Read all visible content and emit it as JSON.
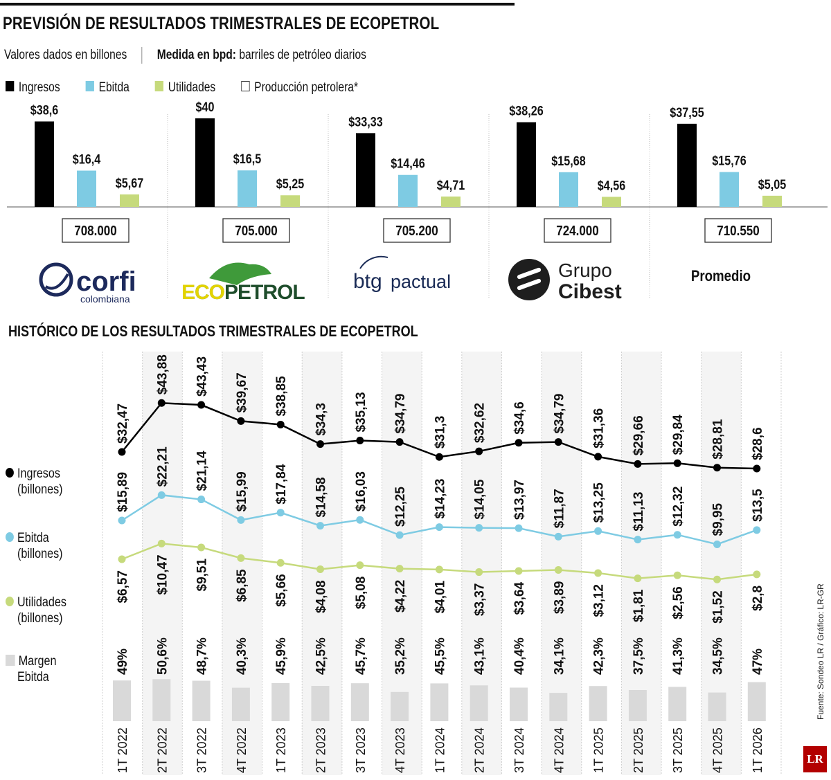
{
  "header": {
    "title": "PREVISIÓN DE RESULTADOS TRIMESTRALES DE ECOPETROL",
    "subtitle_left": "Valores dados en billones",
    "subtitle_right_bold": "Medida en bpd:",
    "subtitle_right_text": "barriles de petróleo diarios"
  },
  "legend_top": [
    {
      "label": "Ingresos",
      "color": "#000000"
    },
    {
      "label": "Ebitda",
      "color": "#7ecbe3"
    },
    {
      "label": "Utilidades",
      "color": "#c6da7c"
    },
    {
      "label": "Producción petrolera*",
      "color": "#ffffff"
    }
  ],
  "history_title": "HISTÓRICO DE LOS RESULTADOS TRIMESTRALES DE ECOPETROL",
  "legend_left": [
    {
      "line1": "Ingresos",
      "line2": "(billones)",
      "color": "#000000",
      "shape": "dot"
    },
    {
      "line1": "Ebitda",
      "line2": "(billones)",
      "color": "#7ecbe3",
      "shape": "dot"
    },
    {
      "line1": "Utilidades",
      "line2": "(billones)",
      "color": "#c6da7c",
      "shape": "dot"
    },
    {
      "line1": "Margen",
      "line2": "Ebitda",
      "color": "#d9d9d9",
      "shape": "square"
    }
  ],
  "source": "Fuente: Sondeo LR / Gráfico: LR-GR",
  "logo_text": "LR",
  "chart_data": [
    {
      "type": "bar",
      "title": "PREVISIÓN DE RESULTADOS TRIMESTRALES DE ECOPETROL",
      "series_names": [
        "Ingresos",
        "Ebitda",
        "Utilidades"
      ],
      "colors": [
        "#000000",
        "#7ecbe3",
        "#c6da7c"
      ],
      "ylim": [
        0,
        40
      ],
      "groups": [
        {
          "name": "Corficolombiana",
          "logo": "corfi-logo",
          "logo_main": "corfi",
          "logo_sub": "colombiana",
          "values": [
            38.6,
            16.4,
            5.67
          ],
          "labels": [
            "$38,6",
            "$16,4",
            "$5,67"
          ],
          "production": "708.000"
        },
        {
          "name": "Ecopetrol",
          "logo": "ecopetrol-logo",
          "logo_main": "ecopetrol",
          "values": [
            40,
            16.5,
            5.25
          ],
          "labels": [
            "$40",
            "$16,5",
            "$5,25"
          ],
          "production": "705.000"
        },
        {
          "name": "BTG Pactual",
          "logo": "btg-logo",
          "logo_main": "btg",
          "logo_sub": "pactual",
          "values": [
            33.33,
            14.46,
            4.71
          ],
          "labels": [
            "$33,33",
            "$14,46",
            "$4,71"
          ],
          "production": "705.200"
        },
        {
          "name": "Grupo Cibest",
          "logo": "cibest-logo",
          "logo_main": "Grupo",
          "logo_sub": "Cibest",
          "values": [
            38.26,
            15.68,
            4.56
          ],
          "labels": [
            "$38,26",
            "$15,68",
            "$4,56"
          ],
          "production": "724.000"
        },
        {
          "name": "Promedio",
          "logo": "promedio-label",
          "logo_main": "Promedio",
          "values": [
            37.55,
            15.76,
            5.05
          ],
          "labels": [
            "$37,55",
            "$15,76",
            "$5,05"
          ],
          "production": "710.550"
        }
      ]
    },
    {
      "type": "line",
      "title": "HISTÓRICO DE LOS RESULTADOS TRIMESTRALES DE ECOPETROL",
      "categories": [
        "1T 2022",
        "2T 2022",
        "3T 2022",
        "4T 2022",
        "1T 2023",
        "2T 2023",
        "3T 2023",
        "4T 2023",
        "1T 2024",
        "2T 2024",
        "3T 2024",
        "4T 2024",
        "1T 2025",
        "2T 2025",
        "3T 2025",
        "4T 2025",
        "1T 2026"
      ],
      "series": [
        {
          "name": "Ingresos",
          "color": "#000000",
          "values": [
            32.47,
            43.88,
            43.43,
            39.67,
            38.85,
            34.3,
            35.13,
            34.79,
            31.3,
            32.62,
            34.6,
            34.79,
            31.36,
            29.66,
            29.84,
            28.81,
            28.6
          ],
          "labels": [
            "$32,47",
            "$43,88",
            "$43,43",
            "$39,67",
            "$38,85",
            "$34,3",
            "$35,13",
            "$34,79",
            "$31,3",
            "$32,62",
            "$34,6",
            "$34,79",
            "$31,36",
            "$29,66",
            "$29,84",
            "$28,81",
            "$28,6"
          ]
        },
        {
          "name": "Ebitda",
          "color": "#7ecbe3",
          "values": [
            15.89,
            22.21,
            21.14,
            15.99,
            17.84,
            14.58,
            16.03,
            12.25,
            14.23,
            14.05,
            13.97,
            11.87,
            13.25,
            11.13,
            12.32,
            9.95,
            13.5
          ],
          "labels": [
            "$15,89",
            "$22,21",
            "$21,14",
            "$15,99",
            "$17,84",
            "$14,58",
            "$16,03",
            "$12,25",
            "$14,23",
            "$14,05",
            "$13,97",
            "$11,87",
            "$13,25",
            "$11,13",
            "$12,32",
            "$9,95",
            "$13,5"
          ]
        },
        {
          "name": "Utilidades",
          "color": "#c6da7c",
          "values": [
            6.57,
            10.47,
            9.51,
            6.85,
            5.66,
            4.08,
            5.08,
            4.22,
            4.01,
            3.37,
            3.64,
            3.89,
            3.12,
            1.81,
            2.56,
            1.52,
            2.8
          ],
          "labels": [
            "$6,57",
            "$10,47",
            "$9,51",
            "$6,85",
            "$5,66",
            "$4,08",
            "$5,08",
            "$4,22",
            "$4,01",
            "$3,37",
            "$3,64",
            "$3,89",
            "$3,12",
            "$1,81",
            "$2,56",
            "$1,52",
            "$2,8"
          ]
        },
        {
          "name": "Margen Ebitda",
          "color": "#d9d9d9",
          "type": "bar",
          "values": [
            49,
            50.6,
            48.7,
            40.3,
            45.9,
            42.5,
            45.7,
            35.2,
            45.5,
            43.1,
            40.4,
            34.1,
            42.3,
            37.5,
            41.3,
            34.5,
            47
          ],
          "labels": [
            "49%",
            "50,6%",
            "48,7%",
            "40,3%",
            "45,9%",
            "42,5%",
            "45,7%",
            "35,2%",
            "45,5%",
            "43,1%",
            "40,4%",
            "34,1%",
            "42,3%",
            "37,5%",
            "41,3%",
            "34,5%",
            "47%"
          ]
        }
      ]
    }
  ]
}
